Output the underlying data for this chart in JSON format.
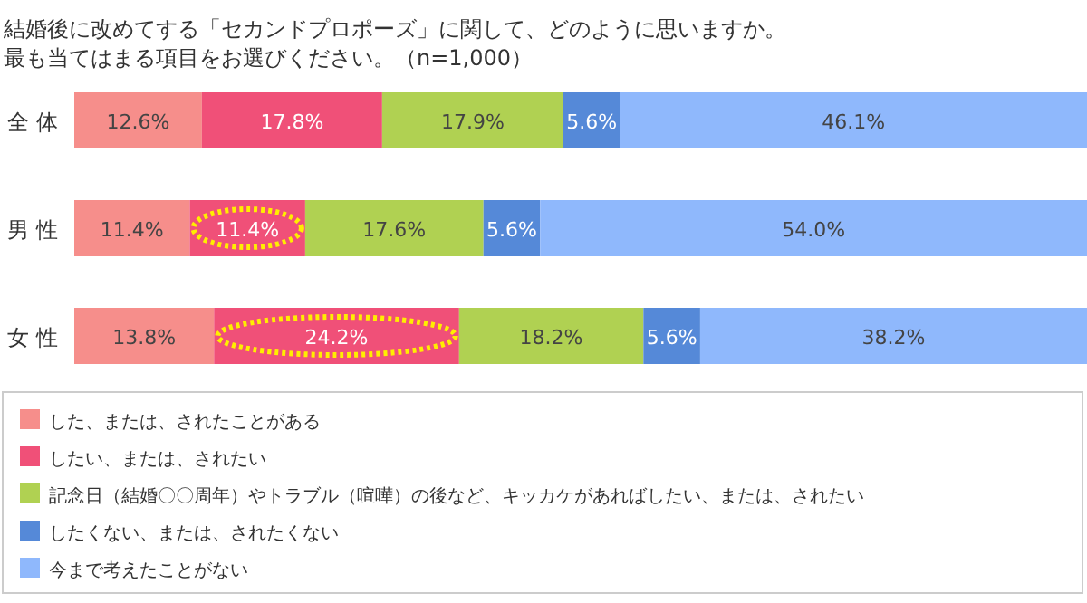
{
  "chart_data": {
    "type": "bar",
    "orientation": "horizontal",
    "stacked": true,
    "title": "結婚後に改めてする「セカンドプロポーズ」に関して、どのように思いますか。",
    "subtitle": "最も当てはまる項目をお選びください。（n=1,000）",
    "categories": [
      "全 体",
      "男 性",
      "女 性"
    ],
    "xlim": [
      0,
      100
    ],
    "legend": "bottom",
    "tick_labels": "y",
    "series": [
      {
        "name": "した、または、されたことがある",
        "color": "#f68e8b",
        "values": [
          12.6,
          11.4,
          13.8
        ],
        "value_labels": [
          "12.6%",
          "11.4%",
          "13.8%"
        ]
      },
      {
        "name": "したい、または、されたい",
        "color": "#f05078",
        "values": [
          17.8,
          11.4,
          24.2
        ],
        "value_labels": [
          "17.8%",
          "11.4%",
          "24.2%"
        ]
      },
      {
        "name": "記念日（結婚〇〇周年）やトラブル（喧嘩）の後など、キッカケがあればしたい、または、されたい",
        "color": "#b0d152",
        "values": [
          17.9,
          17.6,
          18.2
        ],
        "value_labels": [
          "17.9%",
          "17.6%",
          "18.2%"
        ]
      },
      {
        "name": "したくない、または、されたくない",
        "color": "#5589d8",
        "values": [
          5.6,
          5.6,
          5.6
        ],
        "value_labels": [
          "5.6%",
          "5.6%",
          "5.6%"
        ]
      },
      {
        "name": "今まで考えたことがない",
        "color": "#8fb8fc",
        "values": [
          46.1,
          54.0,
          38.2
        ],
        "value_labels": [
          "46.1%",
          "54.0%",
          "38.2%"
        ]
      }
    ]
  }
}
